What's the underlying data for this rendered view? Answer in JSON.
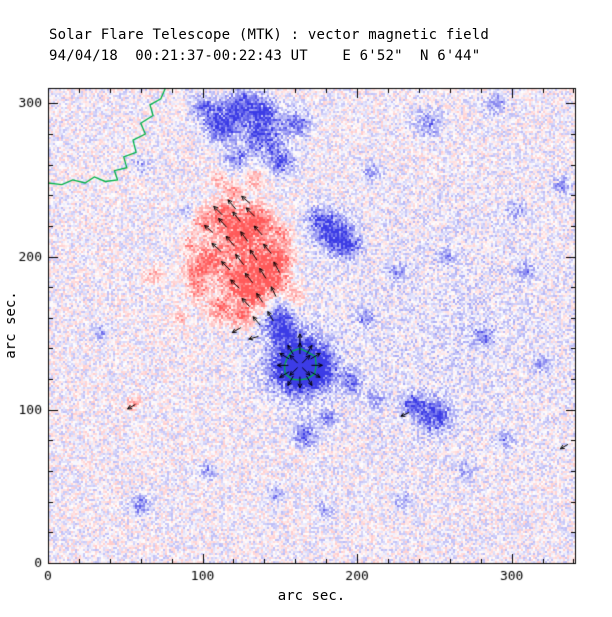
{
  "title": {
    "line1": "Solar Flare Telescope (MTK) : vector magnetic field",
    "line2": "94/04/18  00:21:37-00:22:43 UT    E 6'52\"  N 6'44\""
  },
  "chart_data": {
    "type": "heatmap",
    "title": "Solar Flare Telescope (MTK) : vector magnetic field",
    "subtitle": "94/04/18  00:21:37-00:22:43 UT    E 6'52\"  N 6'44\"",
    "xlabel": "arc sec.",
    "ylabel": "arc sec.",
    "xlim": [
      0,
      341
    ],
    "ylim": [
      0,
      310
    ],
    "x_ticks": [
      "0",
      "100",
      "200",
      "300"
    ],
    "x_tick_values": [
      0,
      100,
      200,
      300
    ],
    "y_ticks": [
      "0",
      "100",
      "200",
      "300"
    ],
    "y_tick_values": [
      0,
      100,
      200,
      300
    ],
    "minor_tick_step": 20,
    "colors": {
      "positive": "#ff5555",
      "negative": "#3c3ce6",
      "contour": "#00b347",
      "axis": "#000000",
      "arrow": "#000000",
      "background": "#ffffff"
    },
    "noise": {
      "seed": 7,
      "grain": 2,
      "amplitude": 0.33,
      "bias": -0.015
    },
    "blobs": [
      [
        163,
        129,
        9,
        -2.0
      ],
      [
        163,
        129,
        16,
        -0.65
      ],
      [
        176,
        126,
        6,
        -0.8
      ],
      [
        147,
        162,
        7,
        -0.9
      ],
      [
        153,
        150,
        5,
        -0.8
      ],
      [
        186,
        214,
        8,
        -1.0
      ],
      [
        176,
        224,
        6,
        -0.6
      ],
      [
        196,
        206,
        5,
        -0.5
      ],
      [
        113,
        287,
        8,
        -0.95
      ],
      [
        127,
        299,
        7,
        -0.85
      ],
      [
        139,
        278,
        8,
        -0.9
      ],
      [
        151,
        262,
        6,
        -0.75
      ],
      [
        141,
        294,
        6,
        -0.7
      ],
      [
        161,
        287,
        6,
        -0.65
      ],
      [
        122,
        264,
        5,
        -0.6
      ],
      [
        100,
        297,
        5,
        -0.6
      ],
      [
        250,
        96,
        7,
        -0.95
      ],
      [
        236,
        104,
        5,
        -0.7
      ],
      [
        166,
        83,
        5,
        -0.75
      ],
      [
        181,
        94,
        4,
        -0.5
      ],
      [
        282,
        148,
        5,
        -0.5
      ],
      [
        310,
        190,
        4,
        -0.45
      ],
      [
        333,
        247,
        4,
        -0.5
      ],
      [
        246,
        287,
        6,
        -0.5
      ],
      [
        210,
        255,
        4,
        -0.45
      ],
      [
        60,
        38,
        5,
        -0.5
      ],
      [
        104,
        60,
        4,
        -0.45
      ],
      [
        147,
        45,
        4,
        -0.4
      ],
      [
        205,
        160,
        4,
        -0.5
      ],
      [
        226,
        190,
        4,
        -0.45
      ],
      [
        296,
        80,
        4,
        -0.45
      ],
      [
        320,
        130,
        4,
        -0.4
      ],
      [
        35,
        150,
        4,
        -0.4
      ],
      [
        290,
        300,
        5,
        -0.45
      ],
      [
        196,
        118,
        5,
        -0.55
      ],
      [
        213,
        107,
        4,
        -0.45
      ],
      [
        258,
        200,
        4,
        -0.4
      ],
      [
        303,
        230,
        4,
        -0.4
      ],
      [
        270,
        60,
        4,
        -0.4
      ],
      [
        230,
        40,
        4,
        -0.4
      ],
      [
        180,
        35,
        4,
        -0.4
      ],
      [
        90,
        230,
        3,
        -0.35
      ],
      [
        60,
        260,
        4,
        -0.4
      ],
      [
        260,
        150,
        60,
        -0.1
      ],
      [
        124,
        214,
        9,
        1.05
      ],
      [
        135,
        224,
        7,
        0.9
      ],
      [
        113,
        228,
        6,
        0.8
      ],
      [
        140,
        196,
        8,
        1.0
      ],
      [
        122,
        186,
        8,
        0.95
      ],
      [
        104,
        198,
        7,
        0.85
      ],
      [
        133,
        176,
        7,
        0.9
      ],
      [
        148,
        184,
        6,
        0.8
      ],
      [
        112,
        166,
        6,
        0.7
      ],
      [
        97,
        178,
        5,
        0.6
      ],
      [
        126,
        160,
        5,
        0.65
      ],
      [
        143,
        165,
        5,
        0.6
      ],
      [
        100,
        222,
        5,
        0.6
      ],
      [
        92,
        208,
        4,
        0.5
      ],
      [
        152,
        200,
        5,
        0.7
      ],
      [
        68,
        188,
        4,
        0.45
      ],
      [
        150,
        214,
        5,
        0.7
      ],
      [
        160,
        173,
        4,
        0.5
      ],
      [
        55,
        104,
        3,
        0.55
      ],
      [
        120,
        243,
        4,
        0.55
      ],
      [
        134,
        250,
        4,
        0.5
      ],
      [
        85,
        160,
        4,
        0.4
      ],
      [
        110,
        250,
        4,
        0.45
      ],
      [
        95,
        190,
        5,
        0.55
      ]
    ],
    "limb_contour": [
      [
        76,
        310
      ],
      [
        73,
        303
      ],
      [
        66,
        299
      ],
      [
        68,
        292
      ],
      [
        60,
        287
      ],
      [
        63,
        280
      ],
      [
        55,
        276
      ],
      [
        57,
        268
      ],
      [
        49,
        265
      ],
      [
        51,
        258
      ],
      [
        43,
        256
      ],
      [
        45,
        250
      ],
      [
        37,
        249
      ],
      [
        30,
        252
      ],
      [
        24,
        248
      ],
      [
        16,
        250
      ],
      [
        9,
        247
      ],
      [
        0,
        248
      ]
    ],
    "spot_contour": {
      "cx": 163,
      "cy": 129,
      "radii": [
        10.5,
        11.5,
        10,
        11,
        10.5,
        9.5,
        10,
        11,
        10.5,
        9.5,
        10,
        11
      ]
    },
    "arrows": [
      [
        110,
        230,
        135,
        12
      ],
      [
        119,
        234,
        130,
        12
      ],
      [
        128,
        237,
        140,
        11
      ],
      [
        104,
        218,
        140,
        11
      ],
      [
        113,
        222,
        132,
        12
      ],
      [
        122,
        226,
        128,
        12
      ],
      [
        131,
        229,
        135,
        12
      ],
      [
        109,
        206,
        138,
        12
      ],
      [
        118,
        210,
        130,
        13
      ],
      [
        127,
        213,
        126,
        12
      ],
      [
        136,
        217,
        132,
        12
      ],
      [
        115,
        194,
        135,
        12
      ],
      [
        124,
        198,
        128,
        13
      ],
      [
        133,
        201,
        124,
        12
      ],
      [
        142,
        205,
        130,
        12
      ],
      [
        121,
        182,
        136,
        12
      ],
      [
        130,
        186,
        128,
        12
      ],
      [
        139,
        189,
        122,
        12
      ],
      [
        148,
        193,
        118,
        12
      ],
      [
        128,
        170,
        132,
        11
      ],
      [
        137,
        173,
        124,
        11
      ],
      [
        146,
        177,
        116,
        11
      ],
      [
        135,
        158,
        130,
        11
      ],
      [
        144,
        161,
        120,
        11
      ],
      [
        122,
        152,
        210,
        10
      ],
      [
        133,
        147,
        195,
        10
      ],
      [
        174,
        129,
        0,
        11
      ],
      [
        173,
        135,
        30,
        11
      ],
      [
        169,
        139,
        60,
        11
      ],
      [
        163,
        140,
        90,
        11
      ],
      [
        157,
        139,
        120,
        11
      ],
      [
        153,
        135,
        150,
        11
      ],
      [
        152,
        129,
        180,
        11
      ],
      [
        153,
        123,
        210,
        11
      ],
      [
        157,
        119,
        240,
        11
      ],
      [
        163,
        118,
        270,
        11
      ],
      [
        169,
        119,
        300,
        11
      ],
      [
        173,
        123,
        330,
        11
      ],
      [
        167,
        133,
        45,
        11
      ],
      [
        159,
        133,
        135,
        11
      ],
      [
        159,
        125,
        225,
        11
      ],
      [
        167,
        125,
        315,
        11
      ],
      [
        163,
        146,
        90,
        11
      ],
      [
        54,
        102,
        210,
        9
      ],
      [
        231,
        97,
        205,
        9
      ],
      [
        334,
        76,
        210,
        9
      ]
    ]
  }
}
